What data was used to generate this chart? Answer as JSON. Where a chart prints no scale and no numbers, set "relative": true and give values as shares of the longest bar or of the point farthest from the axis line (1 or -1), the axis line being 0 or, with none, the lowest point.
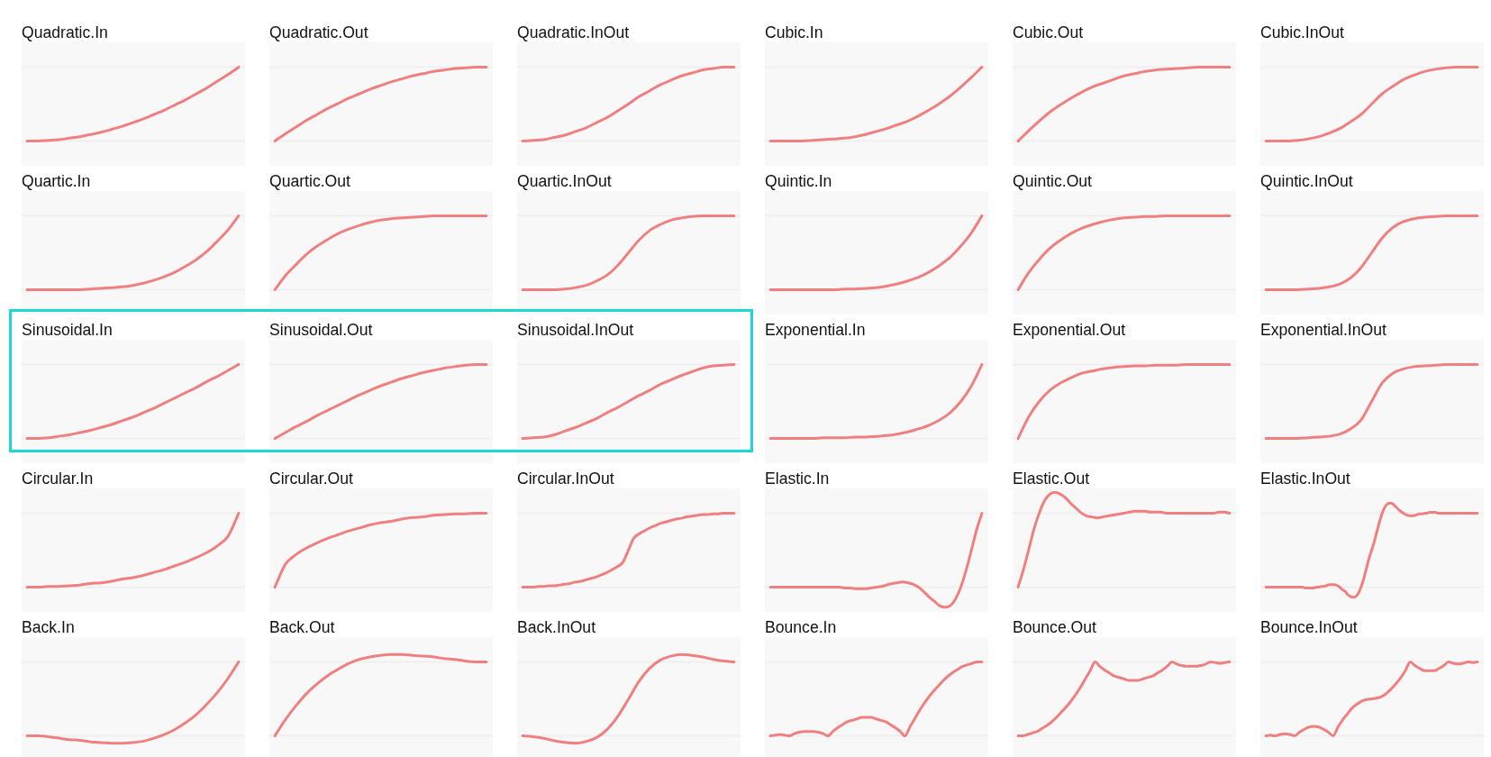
{
  "chart_data": [
    {
      "type": "line",
      "title": "Quadratic.In",
      "relative": true,
      "color": "#f08080",
      "categories": [
        null,
        null,
        null,
        null,
        null,
        null,
        null,
        null,
        null,
        null,
        null,
        null,
        null,
        null,
        null,
        null,
        null,
        null,
        null,
        null,
        null
      ],
      "values": [
        0,
        0,
        0.01,
        0.02,
        0.04,
        0.06,
        0.09,
        0.12,
        0.16,
        0.2,
        0.25,
        0.3,
        0.36,
        0.42,
        0.49,
        0.56,
        0.64,
        0.72,
        0.81,
        0.9,
        1
      ],
      "ref_lines": [
        {
          "axis": "y",
          "value": 0,
          "color": "#efefef"
        },
        {
          "axis": "y",
          "value": 1,
          "color": "#efefef"
        }
      ]
    },
    {
      "type": "line",
      "title": "Quadratic.Out",
      "relative": true,
      "color": "#f08080",
      "categories": [
        null,
        null,
        null,
        null,
        null,
        null,
        null,
        null,
        null,
        null,
        null,
        null,
        null,
        null,
        null,
        null,
        null,
        null,
        null,
        null,
        null
      ],
      "values": [
        0,
        0.1,
        0.19,
        0.28,
        0.36,
        0.44,
        0.51,
        0.58,
        0.64,
        0.7,
        0.75,
        0.8,
        0.84,
        0.88,
        0.91,
        0.94,
        0.96,
        0.98,
        0.99,
        1,
        1
      ],
      "ref_lines": [
        {
          "axis": "y",
          "value": 0,
          "color": "#efefef"
        },
        {
          "axis": "y",
          "value": 1,
          "color": "#efefef"
        }
      ]
    },
    {
      "type": "line",
      "title": "Quadratic.InOut",
      "relative": true,
      "color": "#f08080",
      "categories": [
        null,
        null,
        null,
        null,
        null,
        null,
        null,
        null,
        null,
        null,
        null,
        null,
        null,
        null,
        null,
        null,
        null,
        null,
        null,
        null,
        null
      ],
      "values": [
        0,
        0.01,
        0.02,
        0.05,
        0.08,
        0.13,
        0.18,
        0.25,
        0.32,
        0.41,
        0.5,
        0.6,
        0.68,
        0.76,
        0.82,
        0.88,
        0.92,
        0.96,
        0.98,
        1,
        1
      ],
      "ref_lines": [
        {
          "axis": "y",
          "value": 0,
          "color": "#efefef"
        },
        {
          "axis": "y",
          "value": 1,
          "color": "#efefef"
        }
      ]
    },
    {
      "type": "line",
      "title": "Cubic.In",
      "relative": true,
      "color": "#f08080",
      "categories": [
        null,
        null,
        null,
        null,
        null,
        null,
        null,
        null,
        null,
        null,
        null,
        null,
        null,
        null,
        null,
        null,
        null,
        null,
        null,
        null,
        null
      ],
      "values": [
        0,
        0,
        0,
        0,
        0.01,
        0.02,
        0.03,
        0.04,
        0.06,
        0.09,
        0.13,
        0.17,
        0.22,
        0.27,
        0.34,
        0.42,
        0.51,
        0.61,
        0.73,
        0.86,
        1
      ],
      "ref_lines": [
        {
          "axis": "y",
          "value": 0,
          "color": "#efefef"
        },
        {
          "axis": "y",
          "value": 1,
          "color": "#efefef"
        }
      ]
    },
    {
      "type": "line",
      "title": "Cubic.Out",
      "relative": true,
      "color": "#f08080",
      "categories": [
        null,
        null,
        null,
        null,
        null,
        null,
        null,
        null,
        null,
        null,
        null,
        null,
        null,
        null,
        null,
        null,
        null,
        null,
        null,
        null,
        null
      ],
      "values": [
        0,
        0.14,
        0.27,
        0.39,
        0.49,
        0.58,
        0.66,
        0.73,
        0.78,
        0.83,
        0.88,
        0.91,
        0.94,
        0.96,
        0.97,
        0.98,
        0.99,
        1,
        1,
        1,
        1
      ],
      "ref_lines": [
        {
          "axis": "y",
          "value": 0,
          "color": "#efefef"
        },
        {
          "axis": "y",
          "value": 1,
          "color": "#efefef"
        }
      ]
    },
    {
      "type": "line",
      "title": "Cubic.InOut",
      "relative": true,
      "color": "#f08080",
      "categories": [
        null,
        null,
        null,
        null,
        null,
        null,
        null,
        null,
        null,
        null,
        null,
        null,
        null,
        null,
        null,
        null,
        null,
        null,
        null,
        null,
        null
      ],
      "values": [
        0,
        0,
        0,
        0.01,
        0.03,
        0.06,
        0.11,
        0.17,
        0.26,
        0.36,
        0.5,
        0.64,
        0.74,
        0.83,
        0.89,
        0.94,
        0.97,
        0.99,
        1,
        1,
        1
      ],
      "ref_lines": [
        {
          "axis": "y",
          "value": 0,
          "color": "#efefef"
        },
        {
          "axis": "y",
          "value": 1,
          "color": "#efefef"
        }
      ]
    },
    {
      "type": "line",
      "title": "Quartic.In",
      "relative": true,
      "color": "#f08080",
      "categories": [
        null,
        null,
        null,
        null,
        null,
        null,
        null,
        null,
        null,
        null,
        null,
        null,
        null,
        null,
        null,
        null,
        null,
        null,
        null,
        null,
        null
      ],
      "values": [
        0,
        0,
        0,
        0,
        0,
        0,
        0.01,
        0.02,
        0.03,
        0.04,
        0.06,
        0.09,
        0.13,
        0.18,
        0.24,
        0.32,
        0.41,
        0.52,
        0.66,
        0.81,
        1
      ],
      "ref_lines": [
        {
          "axis": "y",
          "value": 0,
          "color": "#efefef"
        },
        {
          "axis": "y",
          "value": 1,
          "color": "#efefef"
        }
      ]
    },
    {
      "type": "line",
      "title": "Quartic.Out",
      "relative": true,
      "color": "#f08080",
      "categories": [
        null,
        null,
        null,
        null,
        null,
        null,
        null,
        null,
        null,
        null,
        null,
        null,
        null,
        null,
        null,
        null,
        null,
        null,
        null,
        null,
        null
      ],
      "values": [
        0,
        0.19,
        0.34,
        0.48,
        0.59,
        0.68,
        0.76,
        0.82,
        0.87,
        0.91,
        0.94,
        0.96,
        0.97,
        0.98,
        0.99,
        1,
        1,
        1,
        1,
        1,
        1
      ],
      "ref_lines": [
        {
          "axis": "y",
          "value": 0,
          "color": "#efefef"
        },
        {
          "axis": "y",
          "value": 1,
          "color": "#efefef"
        }
      ]
    },
    {
      "type": "line",
      "title": "Quartic.InOut",
      "relative": true,
      "color": "#f08080",
      "categories": [
        null,
        null,
        null,
        null,
        null,
        null,
        null,
        null,
        null,
        null,
        null,
        null,
        null,
        null,
        null,
        null,
        null,
        null,
        null,
        null,
        null
      ],
      "values": [
        0,
        0,
        0,
        0,
        0.01,
        0.03,
        0.06,
        0.12,
        0.2,
        0.33,
        0.5,
        0.67,
        0.8,
        0.88,
        0.94,
        0.97,
        0.99,
        1,
        1,
        1,
        1
      ],
      "ref_lines": [
        {
          "axis": "y",
          "value": 0,
          "color": "#efefef"
        },
        {
          "axis": "y",
          "value": 1,
          "color": "#efefef"
        }
      ]
    },
    {
      "type": "line",
      "title": "Quintic.In",
      "relative": true,
      "color": "#f08080",
      "categories": [
        null,
        null,
        null,
        null,
        null,
        null,
        null,
        null,
        null,
        null,
        null,
        null,
        null,
        null,
        null,
        null,
        null,
        null,
        null,
        null,
        null
      ],
      "values": [
        0,
        0,
        0,
        0,
        0,
        0,
        0,
        0.01,
        0.01,
        0.02,
        0.03,
        0.05,
        0.08,
        0.12,
        0.17,
        0.24,
        0.33,
        0.44,
        0.59,
        0.77,
        1
      ],
      "ref_lines": [
        {
          "axis": "y",
          "value": 0,
          "color": "#efefef"
        },
        {
          "axis": "y",
          "value": 1,
          "color": "#efefef"
        }
      ]
    },
    {
      "type": "line",
      "title": "Quintic.Out",
      "relative": true,
      "color": "#f08080",
      "categories": [
        null,
        null,
        null,
        null,
        null,
        null,
        null,
        null,
        null,
        null,
        null,
        null,
        null,
        null,
        null,
        null,
        null,
        null,
        null,
        null,
        null
      ],
      "values": [
        0,
        0.23,
        0.41,
        0.56,
        0.67,
        0.76,
        0.83,
        0.88,
        0.92,
        0.95,
        0.97,
        0.98,
        0.99,
        0.99,
        1,
        1,
        1,
        1,
        1,
        1,
        1
      ],
      "ref_lines": [
        {
          "axis": "y",
          "value": 0,
          "color": "#efefef"
        },
        {
          "axis": "y",
          "value": 1,
          "color": "#efefef"
        }
      ]
    },
    {
      "type": "line",
      "title": "Quintic.InOut",
      "relative": true,
      "color": "#f08080",
      "categories": [
        null,
        null,
        null,
        null,
        null,
        null,
        null,
        null,
        null,
        null,
        null,
        null,
        null,
        null,
        null,
        null,
        null,
        null,
        null,
        null,
        null
      ],
      "values": [
        0,
        0,
        0,
        0,
        0.01,
        0.02,
        0.04,
        0.08,
        0.16,
        0.3,
        0.5,
        0.7,
        0.84,
        0.92,
        0.96,
        0.98,
        0.99,
        1,
        1,
        1,
        1
      ],
      "ref_lines": [
        {
          "axis": "y",
          "value": 0,
          "color": "#efefef"
        },
        {
          "axis": "y",
          "value": 1,
          "color": "#efefef"
        }
      ]
    },
    {
      "type": "line",
      "title": "Sinusoidal.In",
      "relative": true,
      "color": "#f08080",
      "categories": [
        null,
        null,
        null,
        null,
        null,
        null,
        null,
        null,
        null,
        null,
        null,
        null,
        null,
        null,
        null,
        null,
        null,
        null,
        null,
        null,
        null
      ],
      "values": [
        0,
        0,
        0.01,
        0.03,
        0.05,
        0.08,
        0.11,
        0.15,
        0.19,
        0.24,
        0.29,
        0.35,
        0.41,
        0.48,
        0.55,
        0.62,
        0.69,
        0.77,
        0.84,
        0.92,
        1
      ],
      "ref_lines": [
        {
          "axis": "y",
          "value": 0,
          "color": "#efefef"
        },
        {
          "axis": "y",
          "value": 1,
          "color": "#efefef"
        }
      ]
    },
    {
      "type": "line",
      "title": "Sinusoidal.Out",
      "relative": true,
      "color": "#f08080",
      "categories": [
        null,
        null,
        null,
        null,
        null,
        null,
        null,
        null,
        null,
        null,
        null,
        null,
        null,
        null,
        null,
        null,
        null,
        null,
        null,
        null,
        null
      ],
      "values": [
        0,
        0.08,
        0.16,
        0.23,
        0.31,
        0.38,
        0.45,
        0.52,
        0.59,
        0.65,
        0.71,
        0.76,
        0.81,
        0.85,
        0.89,
        0.92,
        0.95,
        0.97,
        0.99,
        1,
        1
      ],
      "ref_lines": [
        {
          "axis": "y",
          "value": 0,
          "color": "#efefef"
        },
        {
          "axis": "y",
          "value": 1,
          "color": "#efefef"
        }
      ]
    },
    {
      "type": "line",
      "title": "Sinusoidal.InOut",
      "relative": true,
      "color": "#f08080",
      "categories": [
        null,
        null,
        null,
        null,
        null,
        null,
        null,
        null,
        null,
        null,
        null,
        null,
        null,
        null,
        null,
        null,
        null,
        null,
        null,
        null,
        null
      ],
      "values": [
        0,
        0.01,
        0.02,
        0.05,
        0.1,
        0.15,
        0.21,
        0.27,
        0.35,
        0.42,
        0.5,
        0.58,
        0.65,
        0.73,
        0.79,
        0.85,
        0.9,
        0.95,
        0.98,
        0.99,
        1
      ],
      "ref_lines": [
        {
          "axis": "y",
          "value": 0,
          "color": "#efefef"
        },
        {
          "axis": "y",
          "value": 1,
          "color": "#efefef"
        }
      ]
    },
    {
      "type": "line",
      "title": "Exponential.In",
      "relative": true,
      "color": "#f08080",
      "categories": [
        null,
        null,
        null,
        null,
        null,
        null,
        null,
        null,
        null,
        null,
        null,
        null,
        null,
        null,
        null,
        null,
        null,
        null,
        null,
        null,
        null
      ],
      "values": [
        0,
        0,
        0,
        0,
        0,
        0.01,
        0.01,
        0.01,
        0.02,
        0.02,
        0.03,
        0.04,
        0.06,
        0.09,
        0.13,
        0.18,
        0.25,
        0.35,
        0.5,
        0.71,
        1
      ],
      "ref_lines": [
        {
          "axis": "y",
          "value": 0,
          "color": "#efefef"
        },
        {
          "axis": "y",
          "value": 1,
          "color": "#efefef"
        }
      ]
    },
    {
      "type": "line",
      "title": "Exponential.Out",
      "relative": true,
      "color": "#f08080",
      "categories": [
        null,
        null,
        null,
        null,
        null,
        null,
        null,
        null,
        null,
        null,
        null,
        null,
        null,
        null,
        null,
        null,
        null,
        null,
        null,
        null,
        null
      ],
      "values": [
        0,
        0.29,
        0.5,
        0.65,
        0.75,
        0.82,
        0.88,
        0.91,
        0.94,
        0.96,
        0.97,
        0.98,
        0.98,
        0.99,
        0.99,
        0.99,
        1,
        1,
        1,
        1,
        1
      ],
      "ref_lines": [
        {
          "axis": "y",
          "value": 0,
          "color": "#efefef"
        },
        {
          "axis": "y",
          "value": 1,
          "color": "#efefef"
        }
      ]
    },
    {
      "type": "line",
      "title": "Exponential.InOut",
      "relative": true,
      "color": "#f08080",
      "categories": [
        null,
        null,
        null,
        null,
        null,
        null,
        null,
        null,
        null,
        null,
        null,
        null,
        null,
        null,
        null,
        null,
        null,
        null,
        null,
        null,
        null
      ],
      "values": [
        0,
        0,
        0,
        0,
        0.01,
        0.02,
        0.03,
        0.06,
        0.13,
        0.25,
        0.5,
        0.75,
        0.88,
        0.94,
        0.97,
        0.98,
        0.99,
        1,
        1,
        1,
        1
      ],
      "ref_lines": [
        {
          "axis": "y",
          "value": 0,
          "color": "#efefef"
        },
        {
          "axis": "y",
          "value": 1,
          "color": "#efefef"
        }
      ]
    },
    {
      "type": "line",
      "title": "Circular.In",
      "relative": true,
      "color": "#f08080",
      "categories": [
        null,
        null,
        null,
        null,
        null,
        null,
        null,
        null,
        null,
        null,
        null,
        null,
        null,
        null,
        null,
        null,
        null,
        null,
        null,
        null,
        null
      ],
      "values": [
        0,
        0,
        0.01,
        0.01,
        0.02,
        0.03,
        0.05,
        0.06,
        0.08,
        0.11,
        0.13,
        0.16,
        0.2,
        0.24,
        0.29,
        0.34,
        0.4,
        0.47,
        0.56,
        0.69,
        1
      ],
      "ref_lines": [
        {
          "axis": "y",
          "value": 0,
          "color": "#efefef"
        },
        {
          "axis": "y",
          "value": 1,
          "color": "#efefef"
        }
      ]
    },
    {
      "type": "line",
      "title": "Circular.Out",
      "relative": true,
      "color": "#f08080",
      "categories": [
        null,
        null,
        null,
        null,
        null,
        null,
        null,
        null,
        null,
        null,
        null,
        null,
        null,
        null,
        null,
        null,
        null,
        null,
        null,
        null,
        null
      ],
      "values": [
        0,
        0.31,
        0.44,
        0.53,
        0.6,
        0.66,
        0.71,
        0.76,
        0.8,
        0.84,
        0.87,
        0.89,
        0.92,
        0.94,
        0.95,
        0.97,
        0.98,
        0.99,
        0.99,
        1,
        1
      ],
      "ref_lines": [
        {
          "axis": "y",
          "value": 0,
          "color": "#efefef"
        },
        {
          "axis": "y",
          "value": 1,
          "color": "#efefef"
        }
      ]
    },
    {
      "type": "line",
      "title": "Circular.InOut",
      "relative": true,
      "color": "#f08080",
      "categories": [
        null,
        null,
        null,
        null,
        null,
        null,
        null,
        null,
        null,
        null,
        null,
        null,
        null,
        null,
        null,
        null,
        null,
        null,
        null,
        null,
        null,
        null,
        null,
        null,
        null,
        null,
        null,
        null,
        null,
        null,
        null,
        null,
        null,
        null,
        null,
        null,
        null,
        null,
        null,
        null,
        null
      ],
      "values": [
        0,
        0,
        0,
        0.01,
        0.01,
        0.02,
        0.02,
        0.03,
        0.04,
        0.05,
        0.07,
        0.08,
        0.1,
        0.12,
        0.14,
        0.17,
        0.2,
        0.24,
        0.28,
        0.34,
        0.5,
        0.66,
        0.72,
        0.76,
        0.8,
        0.83,
        0.86,
        0.88,
        0.9,
        0.92,
        0.93,
        0.95,
        0.96,
        0.97,
        0.98,
        0.98,
        0.99,
        0.99,
        1,
        1,
        1
      ],
      "ref_lines": [
        {
          "axis": "y",
          "value": 0,
          "color": "#efefef"
        },
        {
          "axis": "y",
          "value": 1,
          "color": "#efefef"
        }
      ]
    },
    {
      "type": "line",
      "title": "Elastic.In",
      "relative": true,
      "color": "#f08080",
      "categories": [
        null,
        null,
        null,
        null,
        null,
        null,
        null,
        null,
        null,
        null,
        null,
        null,
        null,
        null,
        null,
        null,
        null,
        null,
        null,
        null,
        null,
        null,
        null,
        null,
        null,
        null,
        null,
        null,
        null,
        null,
        null,
        null,
        null,
        null,
        null,
        null,
        null,
        null,
        null,
        null,
        null
      ],
      "values": [
        0,
        0,
        0,
        0,
        0,
        0,
        0,
        0,
        0,
        0,
        0,
        0,
        0,
        0,
        -0.01,
        -0.01,
        -0.02,
        -0.02,
        -0.02,
        -0.01,
        0,
        0.01,
        0.03,
        0.05,
        0.06,
        0.07,
        0.06,
        0.04,
        0,
        -0.06,
        -0.13,
        -0.19,
        -0.25,
        -0.27,
        -0.25,
        -0.16,
        0,
        0.23,
        0.5,
        0.78,
        1
      ],
      "ref_lines": [
        {
          "axis": "y",
          "value": 0,
          "color": "#efefef"
        },
        {
          "axis": "y",
          "value": 1,
          "color": "#efefef"
        }
      ]
    },
    {
      "type": "line",
      "title": "Elastic.Out",
      "relative": true,
      "color": "#f08080",
      "categories": [
        null,
        null,
        null,
        null,
        null,
        null,
        null,
        null,
        null,
        null,
        null,
        null,
        null,
        null,
        null,
        null,
        null,
        null,
        null,
        null,
        null,
        null,
        null,
        null,
        null,
        null,
        null,
        null,
        null,
        null,
        null,
        null,
        null,
        null,
        null,
        null,
        null,
        null,
        null,
        null,
        null
      ],
      "values": [
        0,
        0.18,
        0.39,
        0.61,
        0.78,
        0.91,
        0.98,
        1,
        0.98,
        0.94,
        0.88,
        0.83,
        0.78,
        0.75,
        0.74,
        0.73,
        0.74,
        0.75,
        0.76,
        0.77,
        0.78,
        0.79,
        0.8,
        0.8,
        0.8,
        0.79,
        0.79,
        0.79,
        0.78,
        0.78,
        0.78,
        0.78,
        0.78,
        0.78,
        0.78,
        0.78,
        0.78,
        0.78,
        0.79,
        0.79,
        0.78
      ],
      "ref_lines": [
        {
          "axis": "y",
          "value": 0,
          "color": "#efefef"
        },
        {
          "axis": "y",
          "value": 0.78,
          "color": "#efefef"
        }
      ]
    },
    {
      "type": "line",
      "title": "Elastic.InOut",
      "relative": true,
      "color": "#f08080",
      "categories": [
        null,
        null,
        null,
        null,
        null,
        null,
        null,
        null,
        null,
        null,
        null,
        null,
        null,
        null,
        null,
        null,
        null,
        null,
        null,
        null,
        null,
        null,
        null,
        null,
        null,
        null,
        null,
        null,
        null,
        null,
        null,
        null,
        null,
        null,
        null,
        null,
        null,
        null,
        null,
        null,
        null,
        null,
        null,
        null,
        null,
        null,
        null,
        null,
        null,
        null,
        null,
        null,
        null,
        null,
        null,
        null,
        null,
        null,
        null,
        null,
        null,
        null,
        null,
        null,
        null,
        null,
        null,
        null,
        null,
        null,
        null,
        null,
        null,
        null,
        null,
        null,
        null,
        null,
        null,
        null,
        null
      ],
      "values": [
        0,
        0,
        0,
        0,
        0,
        0,
        0,
        0,
        0,
        0,
        0,
        0,
        0,
        0,
        0,
        -0.01,
        -0.01,
        -0.01,
        -0.01,
        0,
        0,
        0.01,
        0.01,
        0.02,
        0.03,
        0.03,
        0.03,
        0.02,
        0,
        -0.03,
        -0.05,
        -0.09,
        -0.11,
        -0.12,
        -0.11,
        -0.07,
        0,
        0.1,
        0.22,
        0.34,
        0.44,
        0.54,
        0.66,
        0.78,
        0.88,
        0.95,
        0.99,
        1,
        0.99,
        0.96,
        0.93,
        0.9,
        0.88,
        0.86,
        0.85,
        0.85,
        0.85,
        0.86,
        0.87,
        0.87,
        0.88,
        0.88,
        0.89,
        0.89,
        0.89,
        0.88,
        0.88,
        0.88,
        0.88,
        0.88,
        0.88,
        0.88,
        0.88,
        0.88,
        0.88,
        0.88,
        0.88,
        0.88,
        0.88,
        0.88,
        0.88
      ],
      "ref_lines": [
        {
          "axis": "y",
          "value": 0,
          "color": "#efefef"
        },
        {
          "axis": "y",
          "value": 0.88,
          "color": "#efefef"
        }
      ]
    },
    {
      "type": "line",
      "title": "Back.In",
      "relative": true,
      "color": "#f08080",
      "categories": [
        null,
        null,
        null,
        null,
        null,
        null,
        null,
        null,
        null,
        null,
        null,
        null,
        null,
        null,
        null,
        null,
        null,
        null,
        null,
        null,
        null
      ],
      "values": [
        0,
        0,
        -0.01,
        -0.03,
        -0.05,
        -0.06,
        -0.08,
        -0.09,
        -0.1,
        -0.1,
        -0.09,
        -0.07,
        -0.03,
        0.02,
        0.09,
        0.18,
        0.29,
        0.43,
        0.59,
        0.78,
        1
      ],
      "ref_lines": [
        {
          "axis": "y",
          "value": 0,
          "color": "#efefef"
        },
        {
          "axis": "y",
          "value": 1,
          "color": "#efefef"
        }
      ]
    },
    {
      "type": "line",
      "title": "Back.Out",
      "relative": true,
      "color": "#f08080",
      "categories": [
        null,
        null,
        null,
        null,
        null,
        null,
        null,
        null,
        null,
        null,
        null,
        null,
        null,
        null,
        null,
        null,
        null,
        null,
        null,
        null,
        null
      ],
      "values": [
        0,
        0.2,
        0.37,
        0.52,
        0.64,
        0.74,
        0.82,
        0.89,
        0.94,
        0.97,
        0.99,
        1,
        1,
        0.99,
        0.98,
        0.97,
        0.95,
        0.94,
        0.92,
        0.91,
        0.91
      ],
      "ref_lines": [
        {
          "axis": "y",
          "value": 0,
          "color": "#efefef"
        },
        {
          "axis": "y",
          "value": 0.91,
          "color": "#efefef"
        }
      ]
    },
    {
      "type": "line",
      "title": "Back.InOut",
      "relative": true,
      "color": "#f08080",
      "categories": [
        null,
        null,
        null,
        null,
        null,
        null,
        null,
        null,
        null,
        null,
        null,
        null,
        null,
        null,
        null,
        null,
        null,
        null,
        null,
        null,
        null
      ],
      "values": [
        0,
        -0.01,
        -0.03,
        -0.06,
        -0.08,
        -0.09,
        -0.07,
        -0.02,
        0.08,
        0.24,
        0.45,
        0.67,
        0.83,
        0.93,
        0.98,
        1,
        0.99,
        0.97,
        0.94,
        0.92,
        0.91
      ],
      "ref_lines": [
        {
          "axis": "y",
          "value": 0,
          "color": "#efefef"
        },
        {
          "axis": "y",
          "value": 0.91,
          "color": "#efefef"
        }
      ]
    },
    {
      "type": "line",
      "title": "Bounce.In",
      "relative": true,
      "color": "#f08080",
      "categories": [
        null,
        null,
        null,
        null,
        null,
        null,
        null,
        null,
        null,
        null,
        null,
        null,
        null,
        null,
        null,
        null,
        null,
        null,
        null,
        null,
        null,
        null,
        null,
        null,
        null,
        null,
        null,
        null,
        null,
        null,
        null,
        null,
        null,
        null,
        null,
        null,
        null,
        null,
        null,
        null,
        null,
        null,
        null,
        null,
        null
      ],
      "values": [
        0,
        0.01,
        0.02,
        0.01,
        0,
        0.03,
        0.05,
        0.06,
        0.06,
        0.06,
        0.05,
        0.03,
        0,
        0.06,
        0.11,
        0.15,
        0.19,
        0.21,
        0.23,
        0.25,
        0.25,
        0.25,
        0.23,
        0.21,
        0.19,
        0.15,
        0.11,
        0.06,
        0,
        0.12,
        0.23,
        0.34,
        0.44,
        0.53,
        0.61,
        0.68,
        0.75,
        0.81,
        0.86,
        0.9,
        0.94,
        0.96,
        0.98,
        1,
        1
      ],
      "ref_lines": [
        {
          "axis": "y",
          "value": 0,
          "color": "#efefef"
        },
        {
          "axis": "y",
          "value": 1,
          "color": "#efefef"
        }
      ]
    },
    {
      "type": "line",
      "title": "Bounce.Out",
      "relative": true,
      "color": "#f08080",
      "categories": [
        null,
        null,
        null,
        null,
        null,
        null,
        null,
        null,
        null,
        null,
        null,
        null,
        null,
        null,
        null,
        null,
        null,
        null,
        null,
        null,
        null,
        null,
        null,
        null,
        null,
        null,
        null,
        null,
        null,
        null,
        null,
        null,
        null,
        null,
        null,
        null,
        null,
        null,
        null,
        null,
        null,
        null,
        null,
        null,
        null
      ],
      "values": [
        0,
        0,
        0.02,
        0.04,
        0.06,
        0.1,
        0.14,
        0.19,
        0.25,
        0.32,
        0.39,
        0.47,
        0.56,
        0.66,
        0.77,
        0.88,
        1,
        0.94,
        0.89,
        0.85,
        0.81,
        0.79,
        0.77,
        0.75,
        0.75,
        0.75,
        0.77,
        0.79,
        0.81,
        0.85,
        0.89,
        0.94,
        1,
        0.97,
        0.95,
        0.94,
        0.94,
        0.94,
        0.95,
        0.97,
        1,
        0.99,
        0.98,
        0.99,
        1
      ],
      "ref_lines": [
        {
          "axis": "y",
          "value": 0,
          "color": "#efefef"
        },
        {
          "axis": "y",
          "value": 1,
          "color": "#efefef"
        }
      ]
    },
    {
      "type": "line",
      "title": "Bounce.InOut",
      "relative": true,
      "color": "#f08080",
      "categories": [
        null,
        null,
        null,
        null,
        null,
        null,
        null,
        null,
        null,
        null,
        null,
        null,
        null,
        null,
        null,
        null,
        null,
        null,
        null,
        null,
        null,
        null,
        null,
        null,
        null,
        null,
        null,
        null,
        null,
        null,
        null,
        null,
        null,
        null,
        null,
        null,
        null,
        null,
        null,
        null,
        null,
        null,
        null,
        null,
        null
      ],
      "values": [
        0,
        0.01,
        0,
        0.02,
        0.03,
        0.02,
        0,
        0.05,
        0.09,
        0.12,
        0.13,
        0.12,
        0.09,
        0.05,
        0,
        0.12,
        0.22,
        0.3,
        0.38,
        0.43,
        0.47,
        0.49,
        0.5,
        0.51,
        0.53,
        0.57,
        0.63,
        0.7,
        0.78,
        0.88,
        1,
        0.95,
        0.91,
        0.88,
        0.88,
        0.88,
        0.91,
        0.95,
        1,
        0.98,
        0.97,
        0.98,
        1,
        0.99,
        1
      ],
      "ref_lines": [
        {
          "axis": "y",
          "value": 0,
          "color": "#efefef"
        },
        {
          "axis": "y",
          "value": 1,
          "color": "#efefef"
        }
      ]
    }
  ]
}
